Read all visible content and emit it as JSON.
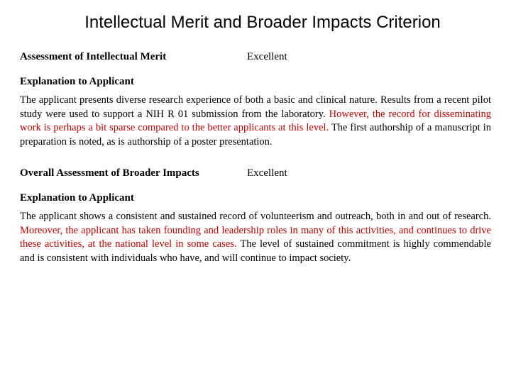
{
  "title": "Intellectual Merit and Broader Impacts Criterion",
  "section1": {
    "label": "Assessment of Intellectual Merit",
    "value": "Excellent",
    "explain_label": "Explanation to Applicant",
    "text_pre": "The applicant presents diverse research experience of both a basic and clinical nature.  Results from a recent pilot study were used to support a NIH R 01 submission from the laboratory.  ",
    "text_hi": "However, the record for disseminating work is perhaps a bit sparse compared to the better applicants at this level.",
    "text_post": "  The first authorship of a manuscript in preparation is noted, as is authorship of a poster presentation."
  },
  "section2": {
    "label": "Overall Assessment of Broader Impacts",
    "value": "Excellent",
    "explain_label": "Explanation to Applicant",
    "text_pre": "The applicant shows a consistent and sustained record of volunteerism and outreach, both in and out of research.  ",
    "text_hi": "Moreover, the applicant has taken founding and leadership roles in many of this activities, and continues to drive these activities, at the national level in some cases.",
    "text_post": "  The level of sustained commitment is highly commendable and is consistent with individuals who have, and will continue to impact society."
  },
  "colors": {
    "highlight": "#c00000",
    "text": "#000000",
    "background": "#ffffff"
  }
}
